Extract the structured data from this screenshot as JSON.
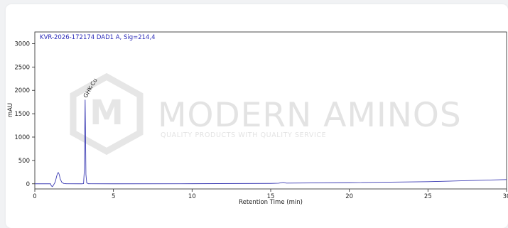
{
  "chart_data": {
    "type": "line",
    "title": "KVR-2026-172174 DAD1 A, Sig=214,4",
    "xlabel": "Retention Time (min)",
    "ylabel": "mAU",
    "xlim": [
      0,
      30
    ],
    "ylim": [
      -110,
      3250
    ],
    "xticks": [
      0,
      5,
      10,
      15,
      20,
      25,
      30
    ],
    "yticks": [
      0,
      500,
      1000,
      1500,
      2000,
      2500,
      3000
    ],
    "grid": false,
    "line_color": "#3b3bb3",
    "series": [
      {
        "values": [
          [
            0.0,
            0
          ],
          [
            1.0,
            0
          ],
          [
            1.05,
            -45
          ],
          [
            1.12,
            -60
          ],
          [
            1.2,
            -20
          ],
          [
            1.3,
            40
          ],
          [
            1.38,
            150
          ],
          [
            1.45,
            230
          ],
          [
            1.5,
            240
          ],
          [
            1.55,
            200
          ],
          [
            1.62,
            100
          ],
          [
            1.72,
            30
          ],
          [
            1.85,
            5
          ],
          [
            2.0,
            2
          ],
          [
            3.0,
            0
          ],
          [
            3.1,
            5
          ],
          [
            3.15,
            300
          ],
          [
            3.18,
            1200
          ],
          [
            3.2,
            1800
          ],
          [
            3.22,
            1200
          ],
          [
            3.25,
            200
          ],
          [
            3.3,
            20
          ],
          [
            3.4,
            2
          ],
          [
            5.0,
            0
          ],
          [
            10.0,
            2
          ],
          [
            15.0,
            8
          ],
          [
            15.5,
            12
          ],
          [
            15.8,
            30
          ],
          [
            16.0,
            15
          ],
          [
            20.0,
            25
          ],
          [
            25.0,
            45
          ],
          [
            30.0,
            90
          ]
        ]
      }
    ],
    "annotations": [
      {
        "text": "GHK-Cu",
        "x": 3.2,
        "y": 1800
      }
    ]
  },
  "watermark": {
    "brand": "MODERN AMINOS",
    "tagline": "QUALITY PRODUCTS WITH QUALITY SERVICE",
    "logo_letter": "M",
    "color": "#e3e3e3"
  }
}
